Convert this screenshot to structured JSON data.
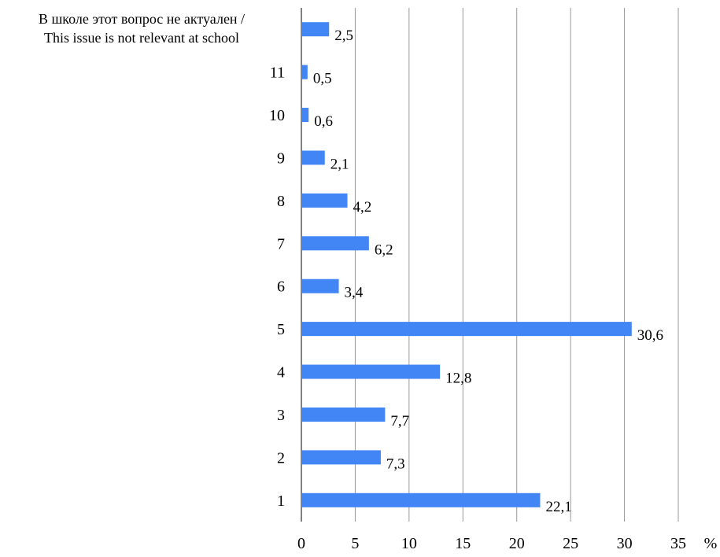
{
  "chart_data": {
    "type": "bar",
    "orientation": "horizontal",
    "categories": [
      "1",
      "2",
      "3",
      "4",
      "5",
      "6",
      "7",
      "8",
      "9",
      "10",
      "11",
      "В школе этот вопрос не актуален / This issue is not relevant at school"
    ],
    "category_label_lines": {
      "В школе этот вопрос не актуален / This issue is not relevant at school": [
        "В школе этот вопрос не актуален /",
        "This issue is not relevant at school"
      ]
    },
    "values": [
      22.1,
      7.3,
      7.7,
      12.8,
      30.6,
      3.4,
      6.2,
      4.2,
      2.1,
      0.6,
      0.5,
      2.5
    ],
    "value_labels": [
      "22,1",
      "7,3",
      "7,7",
      "12,8",
      "30,6",
      "3,4",
      "6,2",
      "4,2",
      "2,1",
      "0,6",
      "0,5",
      "2,5"
    ],
    "xlim": [
      0,
      35
    ],
    "xticks": [
      0,
      5,
      10,
      15,
      20,
      25,
      30,
      35
    ],
    "xlabel": "%",
    "grid": "vertical",
    "bar_color": "#4285f4",
    "grid_color": "#999999"
  }
}
